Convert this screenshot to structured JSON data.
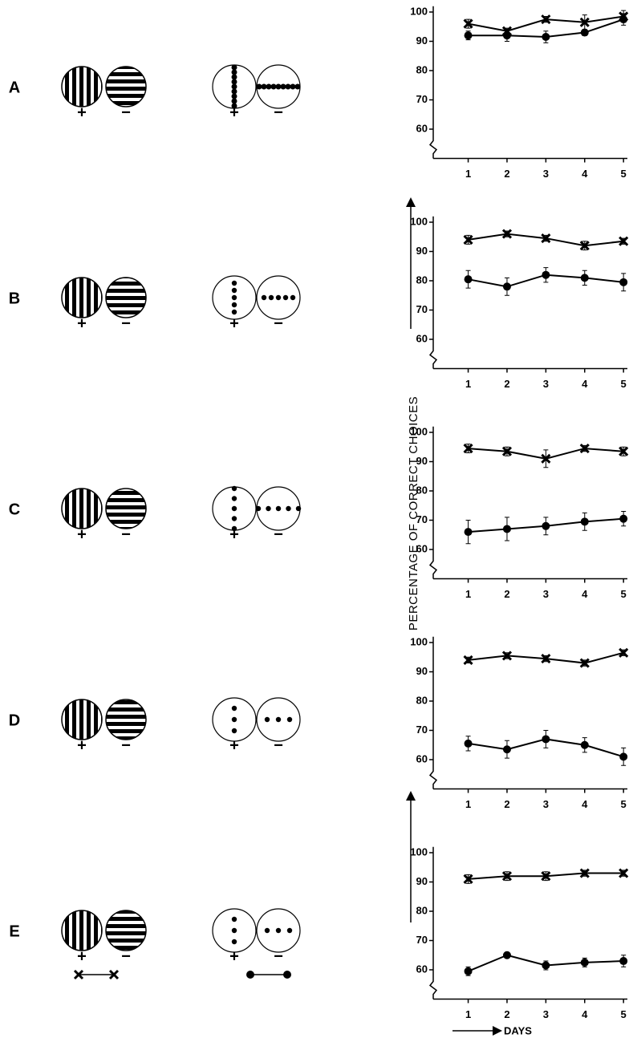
{
  "chart_data": [
    {
      "type": "line",
      "x": [
        1,
        2,
        3,
        4,
        5
      ],
      "xlim": [
        0.1,
        5.1
      ],
      "xticks": [
        1,
        2,
        3,
        4,
        5
      ],
      "ylim": [
        50,
        102
      ],
      "yticks": [
        60,
        70,
        80,
        90,
        100
      ],
      "series": [
        {
          "color": "#000000",
          "marker": "x",
          "values": [
            96,
            93.5,
            97.5,
            96.5,
            98.5
          ],
          "errors": [
            1.5,
            1,
            1,
            2.5,
            2
          ]
        },
        {
          "color": "#000000",
          "marker": "o",
          "values": [
            92,
            92,
            91.5,
            93,
            97.5
          ],
          "errors": [
            1.5,
            2,
            2,
            1,
            2
          ]
        }
      ]
    },
    {
      "type": "line",
      "x": [
        1,
        2,
        3,
        4,
        5
      ],
      "xlim": [
        0.1,
        5.1
      ],
      "xticks": [
        1,
        2,
        3,
        4,
        5
      ],
      "ylim": [
        50,
        102
      ],
      "yticks": [
        60,
        70,
        80,
        90,
        100
      ],
      "series": [
        {
          "color": "#000000",
          "marker": "x",
          "values": [
            94,
            96,
            94.5,
            92,
            93.5
          ],
          "errors": [
            1.5,
            1,
            1,
            1.5,
            1
          ]
        },
        {
          "color": "#000000",
          "marker": "o",
          "values": [
            80.5,
            78,
            82,
            81,
            79.5
          ],
          "errors": [
            3,
            3,
            2.5,
            2.5,
            3
          ]
        }
      ]
    },
    {
      "type": "line",
      "x": [
        1,
        2,
        3,
        4,
        5
      ],
      "xlim": [
        0.1,
        5.1
      ],
      "xticks": [
        1,
        2,
        3,
        4,
        5
      ],
      "ylim": [
        50,
        102
      ],
      "yticks": [
        60,
        70,
        80,
        90,
        100
      ],
      "series": [
        {
          "color": "#000000",
          "marker": "x",
          "values": [
            94.5,
            93.5,
            91,
            94.5,
            93.5
          ],
          "errors": [
            1.5,
            1.5,
            3,
            1,
            1.5
          ]
        },
        {
          "color": "#000000",
          "marker": "o",
          "values": [
            66,
            67,
            68,
            69.5,
            70.5
          ],
          "errors": [
            4,
            4,
            3,
            3,
            2.5
          ]
        }
      ]
    },
    {
      "type": "line",
      "x": [
        1,
        2,
        3,
        4,
        5
      ],
      "xlim": [
        0.1,
        5.1
      ],
      "xticks": [
        1,
        2,
        3,
        4,
        5
      ],
      "ylim": [
        50,
        102
      ],
      "yticks": [
        60,
        70,
        80,
        90,
        100
      ],
      "series": [
        {
          "color": "#000000",
          "marker": "x",
          "values": [
            94,
            95.5,
            94.5,
            93,
            96.5
          ],
          "errors": [
            1,
            1,
            1,
            1,
            1
          ]
        },
        {
          "color": "#000000",
          "marker": "o",
          "values": [
            65.5,
            63.5,
            67,
            65,
            61
          ],
          "errors": [
            2.5,
            3,
            3,
            2.5,
            3
          ]
        }
      ]
    },
    {
      "type": "line",
      "x": [
        1,
        2,
        3,
        4,
        5
      ],
      "xlim": [
        0.1,
        5.1
      ],
      "xticks": [
        1,
        2,
        3,
        4,
        5
      ],
      "ylim": [
        50,
        102
      ],
      "yticks": [
        60,
        70,
        80,
        90,
        100
      ],
      "series": [
        {
          "color": "#000000",
          "marker": "x",
          "values": [
            91,
            92,
            92,
            93,
            93
          ],
          "errors": [
            1.5,
            1.5,
            1.5,
            1,
            1
          ]
        },
        {
          "color": "#000000",
          "marker": "o",
          "values": [
            59.5,
            65,
            61.5,
            62.5,
            63
          ],
          "errors": [
            1.5,
            1,
            1.5,
            1.5,
            2
          ]
        }
      ]
    }
  ],
  "stimuli": [
    {
      "label": "A",
      "signs": [
        "+",
        "−",
        "+",
        "−"
      ]
    },
    {
      "label": "B",
      "signs": [
        "+",
        "−",
        "+",
        "−"
      ]
    },
    {
      "label": "C",
      "signs": [
        "+",
        "−",
        "+",
        "−"
      ]
    },
    {
      "label": "D",
      "signs": [
        "+",
        "−",
        "+",
        "−"
      ]
    },
    {
      "label": "E",
      "signs": [
        "+",
        "−",
        "+",
        "−"
      ]
    }
  ],
  "y_label": "PERCENTAGE OF CORRECT CHOICES",
  "x_label": "DAYS"
}
